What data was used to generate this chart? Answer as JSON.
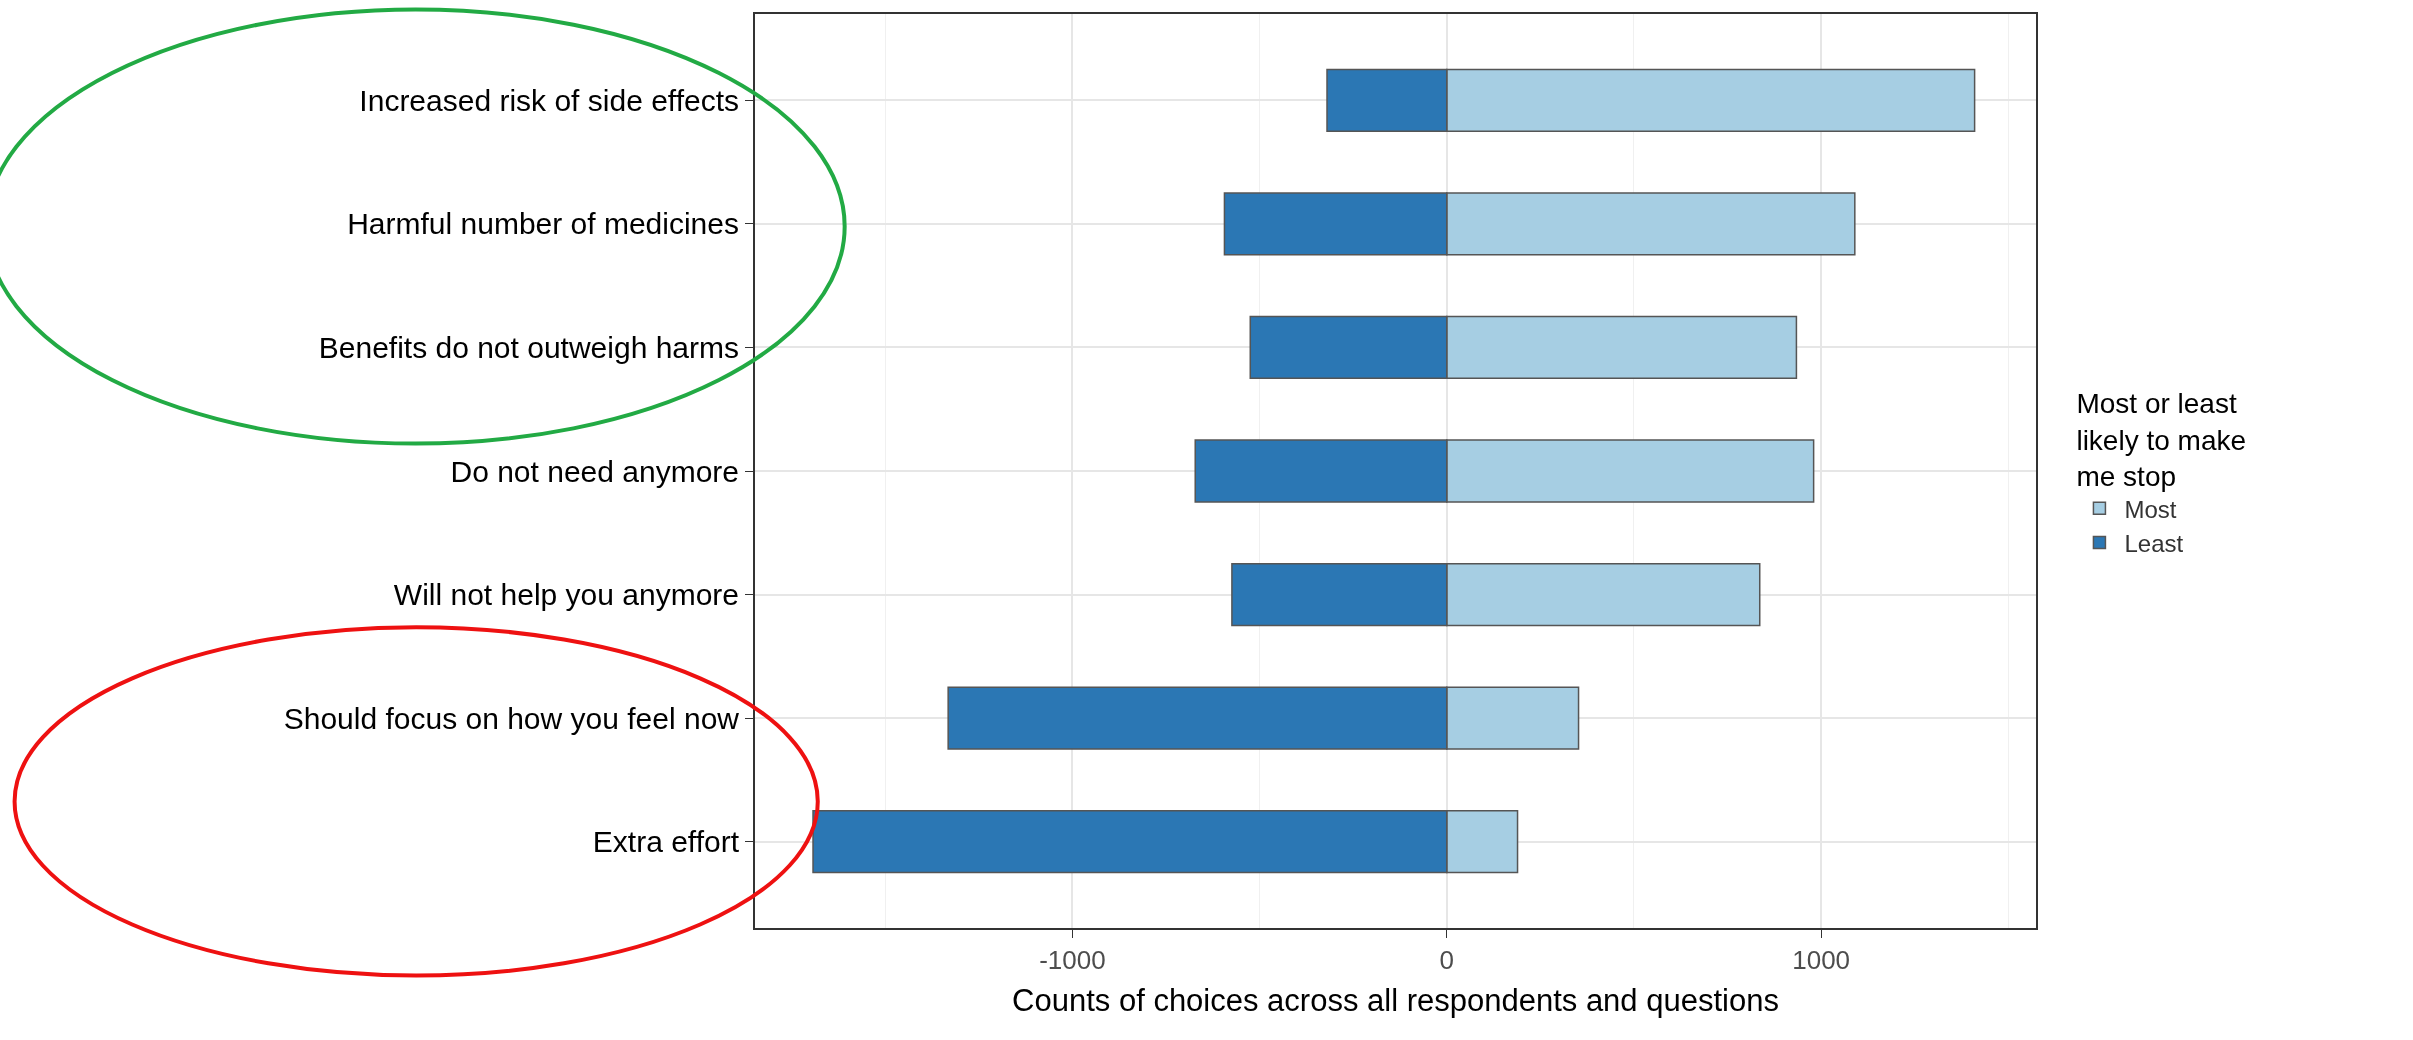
{
  "chart_data": {
    "type": "bar",
    "orientation": "horizontal",
    "stacked": true,
    "categories": [
      "Increased risk of side effects",
      "Harmful number of medicines",
      "Benefits do not outweigh harms",
      "Do not need anymore",
      "Will not help you anymore",
      "Should focus on how you feel now",
      "Extra effort"
    ],
    "series": [
      {
        "name": "Most",
        "color": "#a6cee3",
        "values": [
          1410,
          1090,
          934,
          980,
          836,
          352,
          189
        ]
      },
      {
        "name": "Least",
        "color": "#2b77b4",
        "values": [
          -320,
          -594,
          -525,
          -672,
          -574,
          -1332,
          -1693
        ]
      }
    ],
    "xlabel": "Counts of choices across all respondents and questions",
    "legend_title": "Most or least likely to make me stop",
    "xlim": [
      -1848,
      1574
    ],
    "xticks": [
      -1000,
      0,
      1000
    ],
    "grid": true,
    "legend": "right"
  }
}
